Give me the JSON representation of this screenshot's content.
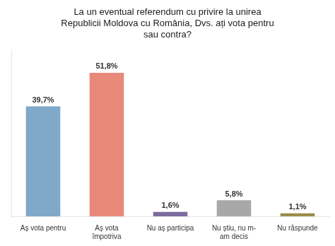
{
  "chart_data": {
    "type": "bar",
    "title": "La un eventual referendum cu privire la unirea\nRepublicii Moldova cu România, Dvs. ați vota pentru\nsau contra?",
    "categories": [
      "Aș vota pentru",
      "Aș vota\nîmpotriva",
      "Nu aș participa",
      "Nu știu, nu m-\nam decis",
      "Nu răspunde"
    ],
    "values": [
      39.7,
      51.8,
      1.6,
      5.8,
      1.1
    ],
    "value_labels": [
      "39,7%",
      "51,8%",
      "1,6%",
      "5,8%",
      "1,1%"
    ],
    "data_labels": true,
    "colors": [
      "#7fa8c9",
      "#e8897a",
      "#7b6b9e",
      "#a8a8a8",
      "#9b8c4a"
    ],
    "ylim": [
      0,
      60
    ],
    "grid": false,
    "tick_labels": "x"
  }
}
